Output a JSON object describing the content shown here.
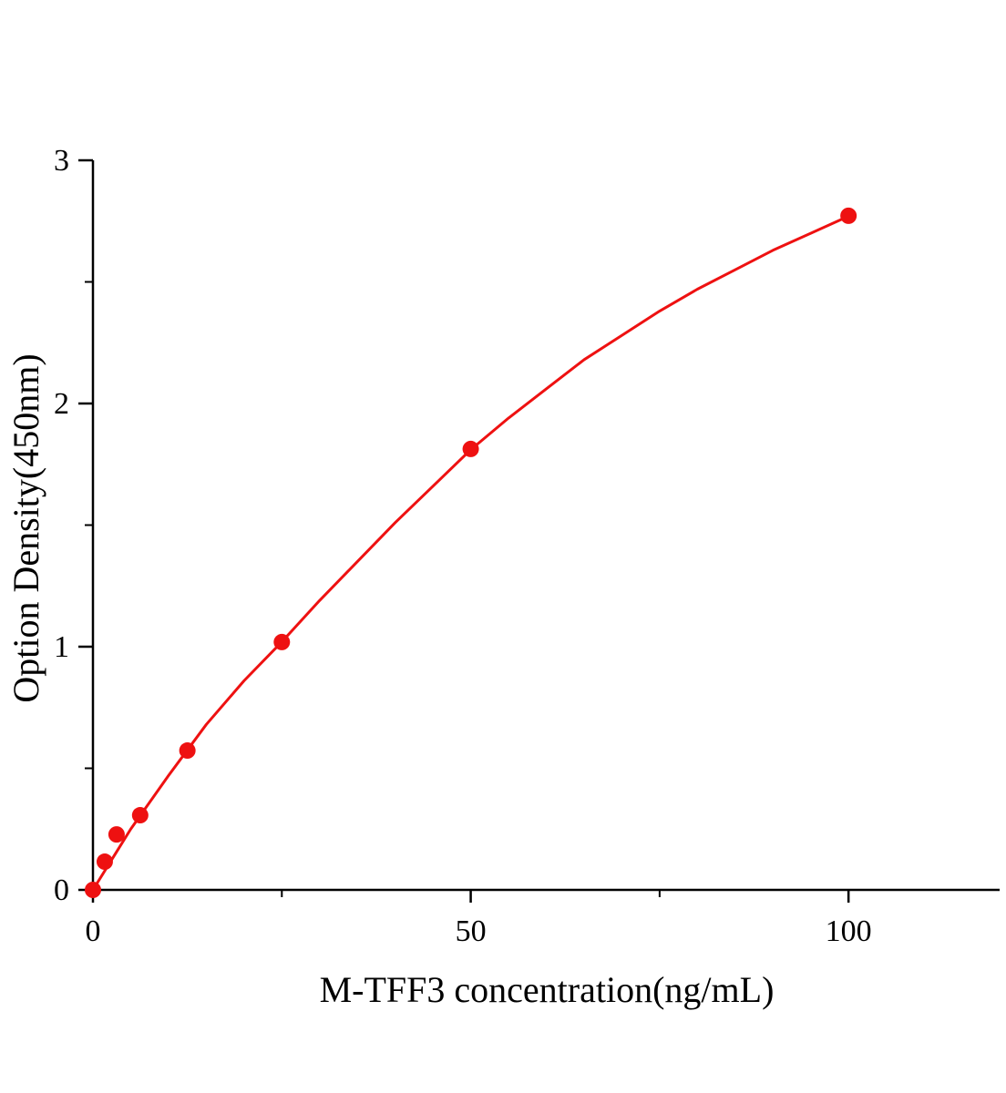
{
  "chart_data": {
    "type": "scatter",
    "x_label": "M-TFF3 concentration(ng/mL)",
    "y_label": "Option Density(450nm)",
    "xlim": [
      0,
      120
    ],
    "xticks": [
      0,
      50,
      100
    ],
    "xminorticks": [
      25,
      75
    ],
    "ylim": [
      0,
      3
    ],
    "yticks": [
      0,
      1,
      2,
      3
    ],
    "yminorticks": [
      0.5,
      1.5,
      2.5
    ],
    "grid": false,
    "series": [
      {
        "kind": "points",
        "color": "#ee1111",
        "x": [
          0,
          1.5625,
          3.125,
          6.25,
          12.5,
          25,
          50,
          100
        ],
        "values": [
          0.0,
          0.116,
          0.228,
          0.307,
          0.573,
          1.019,
          1.813,
          2.772
        ]
      },
      {
        "kind": "curve",
        "color": "#ee1111",
        "x": [
          0,
          5,
          10,
          15,
          20,
          25,
          30,
          35,
          40,
          45,
          50,
          55,
          60,
          65,
          70,
          75,
          80,
          85,
          90,
          95,
          100
        ],
        "values": [
          0,
          0.25,
          0.47,
          0.68,
          0.86,
          1.02,
          1.19,
          1.35,
          1.51,
          1.66,
          1.81,
          1.94,
          2.06,
          2.18,
          2.28,
          2.38,
          2.47,
          2.55,
          2.63,
          2.7,
          2.77
        ]
      }
    ]
  }
}
